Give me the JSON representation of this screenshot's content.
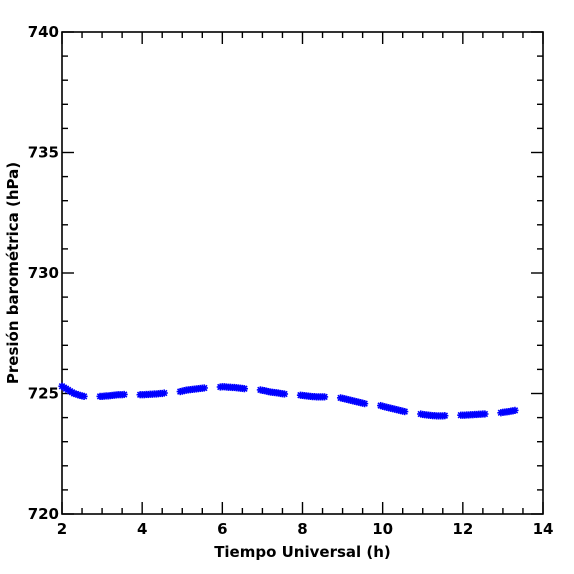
{
  "chart_data": {
    "type": "scatter",
    "title": "",
    "xlabel": "Tiempo Universal (h)",
    "ylabel": "Presión barométrica (hPa)",
    "xlim": [
      2,
      14
    ],
    "ylim": [
      720,
      740
    ],
    "xticks": [
      2,
      4,
      6,
      8,
      10,
      12,
      14
    ],
    "yticks": [
      720,
      725,
      730,
      735,
      740
    ],
    "xtick_labels": [
      "2",
      "4",
      "6",
      "8",
      "10",
      "12",
      "14"
    ],
    "ytick_labels": [
      "720",
      "725",
      "730",
      "735",
      "740"
    ],
    "x_minor_step": 0.5,
    "y_minor_step": 1,
    "grid": false,
    "marker": "asterisk",
    "color": "#0000ff",
    "series": [
      {
        "x": [
          2.0,
          2.05,
          2.1,
          2.15,
          2.2,
          2.25,
          2.3,
          2.35,
          2.4,
          2.45,
          2.5,
          2.55,
          2.95,
          3.0,
          3.05,
          3.1,
          3.15,
          3.2,
          3.25,
          3.3,
          3.35,
          3.4,
          3.45,
          3.5,
          3.55,
          3.95,
          4.0,
          4.05,
          4.1,
          4.15,
          4.2,
          4.25,
          4.3,
          4.35,
          4.4,
          4.45,
          4.5,
          4.55,
          4.95,
          5.0,
          5.05,
          5.1,
          5.15,
          5.2,
          5.25,
          5.3,
          5.35,
          5.4,
          5.45,
          5.5,
          5.55,
          5.95,
          6.0,
          6.05,
          6.1,
          6.15,
          6.2,
          6.25,
          6.3,
          6.35,
          6.4,
          6.45,
          6.5,
          6.55,
          6.95,
          7.0,
          7.05,
          7.1,
          7.15,
          7.2,
          7.25,
          7.3,
          7.35,
          7.4,
          7.45,
          7.5,
          7.55,
          7.95,
          8.0,
          8.05,
          8.1,
          8.15,
          8.2,
          8.25,
          8.3,
          8.35,
          8.4,
          8.45,
          8.5,
          8.55,
          8.95,
          9.0,
          9.05,
          9.1,
          9.15,
          9.2,
          9.25,
          9.3,
          9.35,
          9.4,
          9.45,
          9.5,
          9.55,
          9.95,
          10.0,
          10.05,
          10.1,
          10.15,
          10.2,
          10.25,
          10.3,
          10.35,
          10.4,
          10.45,
          10.5,
          10.55,
          10.95,
          11.0,
          11.05,
          11.1,
          11.15,
          11.2,
          11.25,
          11.3,
          11.35,
          11.4,
          11.45,
          11.5,
          11.55,
          11.95,
          12.0,
          12.05,
          12.1,
          12.15,
          12.2,
          12.25,
          12.3,
          12.35,
          12.4,
          12.45,
          12.5,
          12.55,
          12.95,
          13.0,
          13.05,
          13.1,
          13.15,
          13.2,
          13.25,
          13.3
        ],
        "y": [
          725.3,
          725.25,
          725.2,
          725.15,
          725.1,
          725.05,
          725.0,
          724.98,
          724.95,
          724.92,
          724.9,
          724.88,
          724.88,
          724.88,
          724.89,
          724.9,
          724.9,
          724.91,
          724.92,
          724.93,
          724.94,
          724.95,
          724.95,
          724.95,
          724.96,
          724.95,
          724.95,
          724.95,
          724.96,
          724.96,
          724.97,
          724.97,
          724.98,
          724.98,
          724.99,
          725.0,
          725.0,
          725.02,
          725.08,
          725.1,
          725.12,
          725.14,
          725.15,
          725.16,
          725.17,
          725.18,
          725.19,
          725.2,
          725.21,
          725.22,
          725.23,
          725.27,
          725.28,
          725.28,
          725.27,
          725.26,
          725.26,
          725.25,
          725.25,
          725.24,
          725.23,
          725.22,
          725.21,
          725.2,
          725.15,
          725.13,
          725.12,
          725.1,
          725.08,
          725.06,
          725.05,
          725.04,
          725.03,
          725.02,
          725.0,
          724.99,
          724.98,
          724.93,
          724.92,
          724.91,
          724.9,
          724.89,
          724.88,
          724.87,
          724.87,
          724.86,
          724.86,
          724.86,
          724.86,
          724.86,
          724.82,
          724.8,
          724.78,
          724.76,
          724.74,
          724.72,
          724.7,
          724.68,
          724.66,
          724.64,
          724.62,
          724.6,
          724.58,
          724.5,
          724.47,
          724.45,
          724.43,
          724.41,
          724.39,
          724.37,
          724.35,
          724.33,
          724.31,
          724.29,
          724.27,
          724.25,
          724.15,
          724.13,
          724.12,
          724.11,
          724.1,
          724.09,
          724.08,
          724.08,
          724.07,
          724.07,
          724.07,
          724.07,
          724.08,
          724.1,
          724.1,
          724.1,
          724.11,
          724.11,
          724.12,
          724.12,
          724.13,
          724.13,
          724.14,
          724.14,
          724.15,
          724.15,
          724.2,
          724.22,
          724.23,
          724.24,
          724.25,
          724.27,
          724.28,
          724.3
        ]
      }
    ]
  }
}
